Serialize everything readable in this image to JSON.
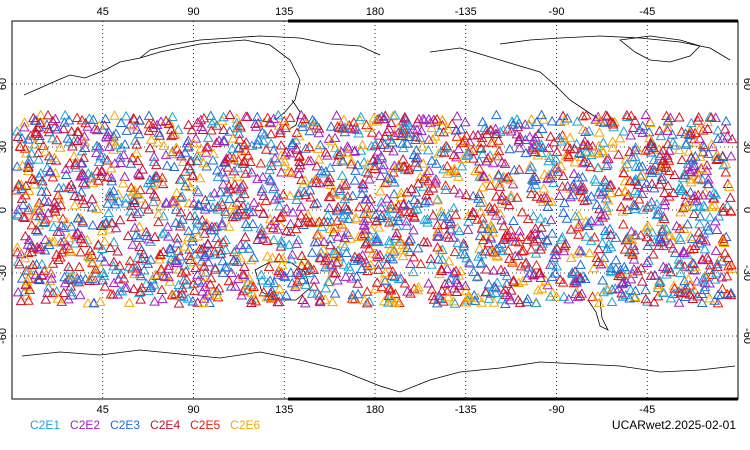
{
  "chart_data": {
    "type": "scatter",
    "projection": "equirectangular",
    "central_longitude": 180,
    "grid": true,
    "marker": "triangle-open",
    "x_ticks": [
      "45",
      "90",
      "135",
      "180",
      "-135",
      "-90",
      "-45"
    ],
    "y_ticks": [
      "60",
      "30",
      "0",
      "-30",
      "-60"
    ],
    "series": [
      {
        "name": "C2E1",
        "color": "#1aa3d9"
      },
      {
        "name": "C2E2",
        "color": "#a020c0"
      },
      {
        "name": "C2E3",
        "color": "#1f6ad9"
      },
      {
        "name": "C2E4",
        "color": "#c8102e"
      },
      {
        "name": "C2E5",
        "color": "#e8180c"
      },
      {
        "name": "C2E6",
        "color": "#f5a800"
      }
    ],
    "latitude_range": [
      -45,
      45
    ],
    "legend_placement": "bottom-left"
  },
  "caption": "UCARwet2.2025-02-01"
}
